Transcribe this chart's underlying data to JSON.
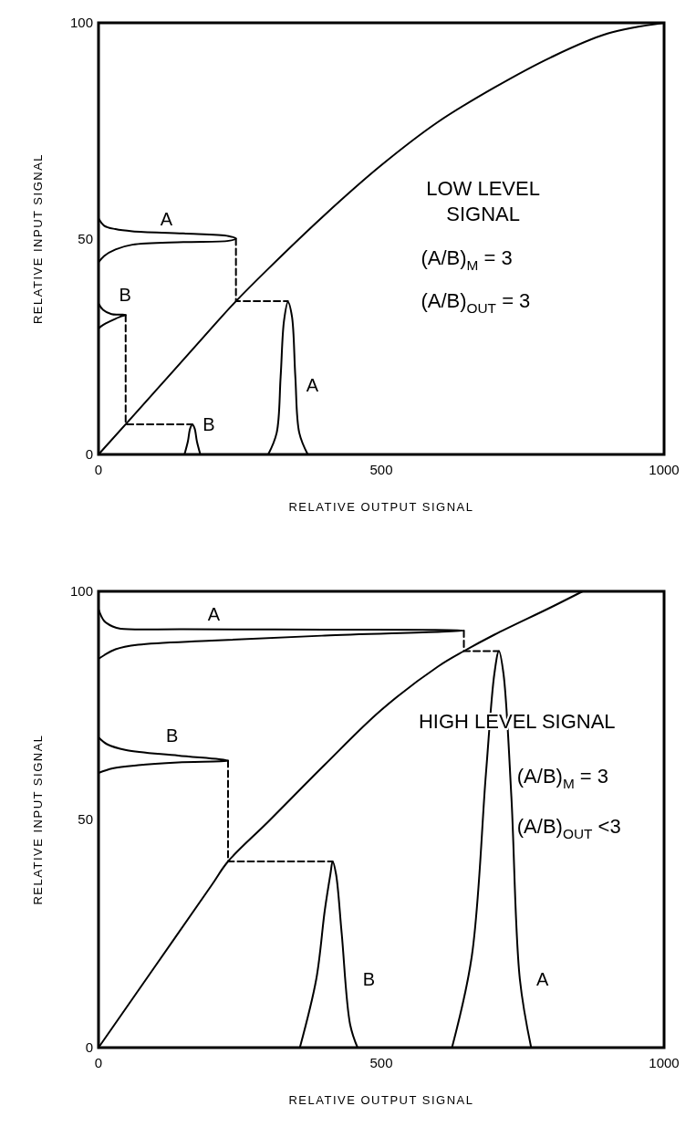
{
  "chart_data": [
    {
      "type": "line",
      "xlabel": "RELATIVE OUTPUT SIGNAL",
      "ylabel": "RELATIVE INPUT SIGNAL",
      "xlim": [
        0,
        1000
      ],
      "ylim": [
        0,
        100
      ],
      "xticks": [
        0,
        500,
        1000
      ],
      "yticks": [
        0,
        50,
        100
      ],
      "grid": false,
      "marker": "none",
      "series": [
        {
          "color": "#000000",
          "x": [
            0,
            100,
            200,
            243,
            300,
            400,
            500,
            600,
            700,
            800,
            900,
            1000
          ],
          "values": [
            0,
            14.6,
            29.3,
            35.5,
            43,
            55.5,
            67,
            77,
            85,
            92,
            97.5,
            100
          ]
        },
        {
          "color": "#000000",
          "x": [
            0,
            10,
            30,
            60,
            150,
            230,
            243,
            230,
            150,
            60,
            30,
            10,
            0
          ],
          "values": [
            54.7,
            53,
            52.2,
            51.7,
            51.2,
            50.6,
            50,
            49.5,
            49.2,
            48.6,
            47.5,
            46,
            44.5
          ]
        },
        {
          "color": "#000000",
          "x": [
            0,
            8,
            23,
            40,
            48,
            40,
            23,
            8,
            0
          ],
          "values": [
            35,
            33.5,
            32.5,
            32.4,
            32.3,
            32,
            31,
            30,
            29.2
          ]
        },
        {
          "color": "#000000",
          "x": [
            300,
            315,
            322,
            328,
            335,
            342,
            348,
            355,
            370
          ],
          "values": [
            0,
            5,
            18,
            31,
            35.3,
            32,
            18,
            5,
            0
          ]
        },
        {
          "color": "#000000",
          "x": [
            152,
            158,
            162,
            166,
            170,
            174,
            180
          ],
          "values": [
            0,
            3,
            6,
            6.9,
            6,
            3,
            0
          ]
        },
        {
          "color": "#000000",
          "line_style": "dashed",
          "x": [
            243,
            243,
            335
          ],
          "values": [
            50,
            35.5,
            35.5
          ]
        },
        {
          "color": "#000000",
          "line_style": "dashed",
          "x": [
            48,
            48,
            166
          ],
          "values": [
            32.3,
            7,
            7
          ]
        }
      ],
      "annotations": [
        "A",
        "B",
        "B",
        "A",
        "LOW LEVEL SIGNAL",
        "(A/B)$_{M}$ = 3",
        "(A/B)$_{OUT}$ = 3"
      ]
    },
    {
      "type": "line",
      "xlabel": "RELATIVE OUTPUT SIGNAL",
      "ylabel": "RELATIVE INPUT SIGNAL",
      "xlim": [
        0,
        1000
      ],
      "ylim": [
        0,
        100
      ],
      "xticks": [
        0,
        500,
        1000
      ],
      "yticks": [
        0,
        50,
        100
      ],
      "grid": false,
      "marker": "none",
      "series": [
        {
          "color": "#000000",
          "x": [
            0,
            100,
            200,
            229,
            300,
            400,
            500,
            600,
            646,
            700,
            800,
            856
          ],
          "values": [
            0,
            17.8,
            35.6,
            40.8,
            49.5,
            62,
            74,
            83.5,
            86.9,
            90.5,
            96.5,
            100
          ]
        },
        {
          "color": "#000000",
          "x": [
            0,
            10,
            25,
            39,
            150,
            400,
            646,
            400,
            200,
            70,
            30,
            10,
            0
          ],
          "values": [
            96.1,
            93.5,
            92.3,
            91.8,
            91.7,
            91.6,
            91.4,
            90.3,
            89.2,
            88.3,
            87.3,
            86,
            85.2
          ]
        },
        {
          "color": "#000000",
          "x": [
            0,
            15,
            49,
            141,
            229,
            141,
            70,
            25,
            0
          ],
          "values": [
            68,
            66.5,
            65.2,
            64,
            62.9,
            62.5,
            61.9,
            61.2,
            60.2
          ]
        },
        {
          "color": "#000000",
          "x": [
            625,
            660,
            685,
            700,
            708,
            716,
            730,
            745,
            765
          ],
          "values": [
            0,
            20,
            60,
            82,
            86.9,
            82,
            55,
            15,
            0
          ]
        },
        {
          "color": "#000000",
          "x": [
            356,
            385,
            400,
            410,
            414,
            420,
            430,
            445,
            458
          ],
          "values": [
            0,
            15,
            30,
            38,
            40.8,
            38,
            25,
            5,
            0
          ]
        },
        {
          "color": "#000000",
          "line_style": "dashed",
          "x": [
            646,
            646,
            708
          ],
          "values": [
            91.4,
            86.9,
            86.9
          ]
        },
        {
          "color": "#000000",
          "line_style": "dashed",
          "x": [
            229,
            229,
            414
          ],
          "values": [
            62.9,
            40.8,
            40.8
          ]
        }
      ],
      "annotations": [
        "A",
        "B",
        "B",
        "A",
        "HIGH LEVEL SIGNAL",
        "(A/B)$_{M}$ = 3",
        "(A/B)$_{OUT}$ <3"
      ]
    }
  ]
}
